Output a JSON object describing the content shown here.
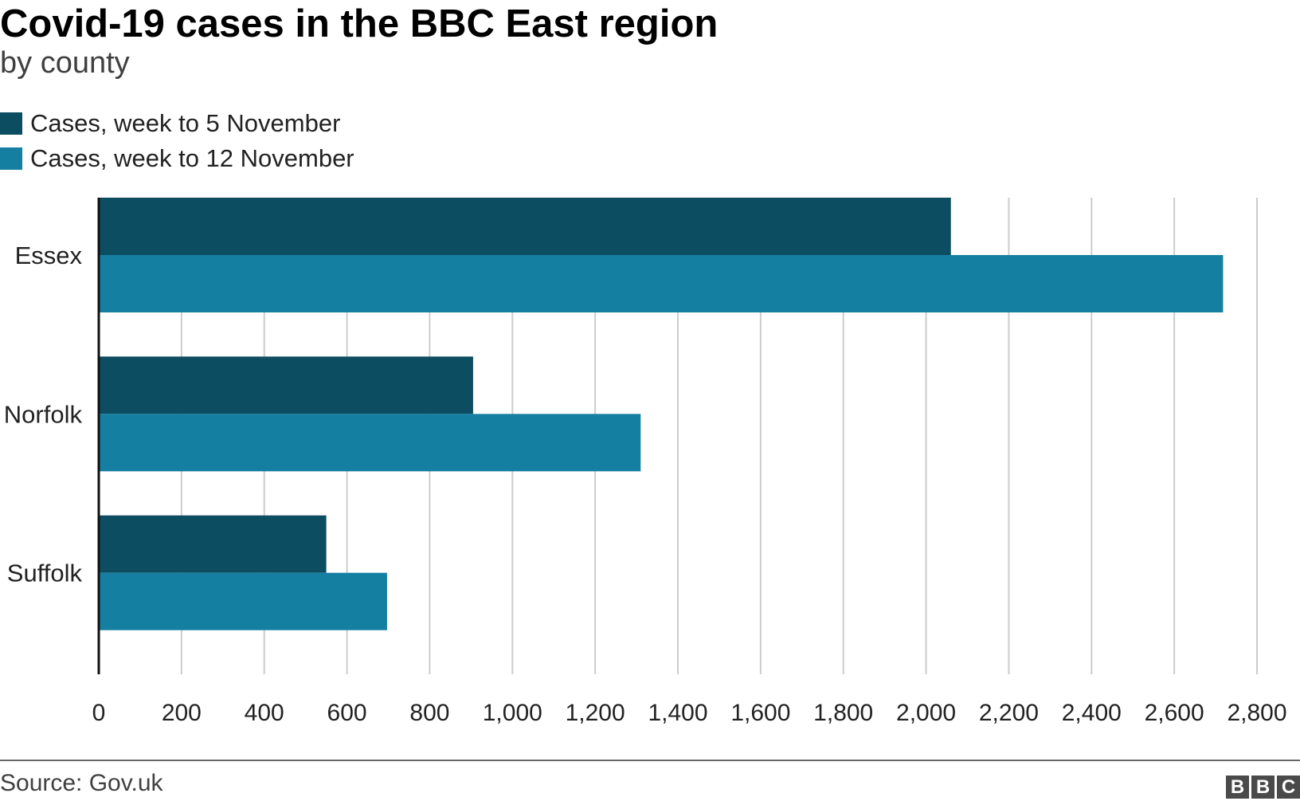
{
  "chart_data": {
    "type": "bar",
    "orientation": "horizontal",
    "title": "Covid-19 cases in the BBC East region",
    "subtitle": "by county",
    "categories": [
      "Essex",
      "Norfolk",
      "Suffolk"
    ],
    "series": [
      {
        "name": "Cases, week to 5 November",
        "color": "#0d4d61",
        "values": [
          2060,
          905,
          550
        ]
      },
      {
        "name": "Cases, week to 12 November",
        "color": "#157fa1",
        "values": [
          2718,
          1310,
          697
        ]
      }
    ],
    "xlim": [
      0,
      2800
    ],
    "xticks": [
      0,
      200,
      400,
      600,
      800,
      1000,
      1200,
      1400,
      1600,
      1800,
      2000,
      2200,
      2400,
      2600,
      2800
    ],
    "xtick_labels": [
      "0",
      "200",
      "400",
      "600",
      "800",
      "1,000",
      "1,200",
      "1,400",
      "1,600",
      "1,800",
      "2,000",
      "2,200",
      "2,400",
      "2,600",
      "2,800"
    ],
    "grid": "vertical",
    "legend": "top-left"
  },
  "source": "Source: Gov.uk",
  "logo": [
    "B",
    "B",
    "C"
  ]
}
